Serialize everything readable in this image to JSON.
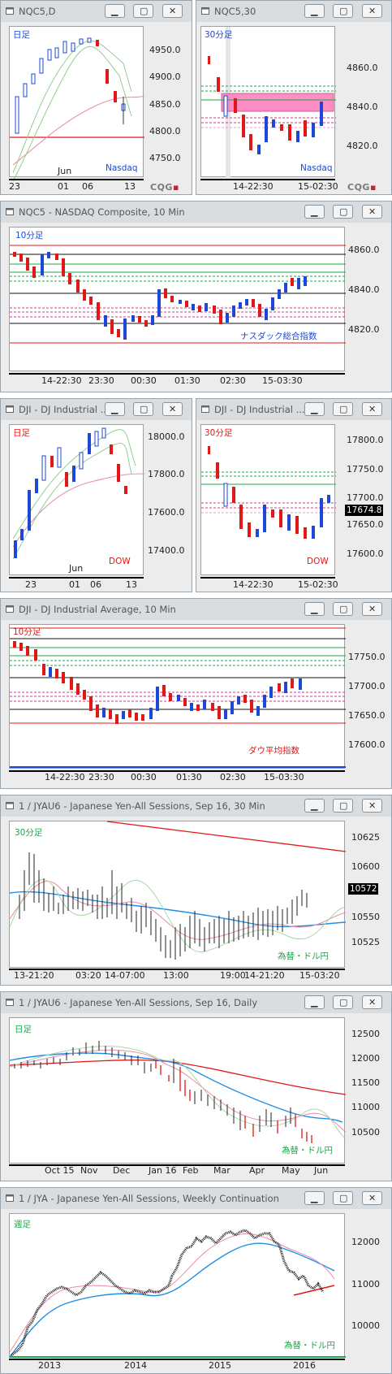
{
  "windows": [
    {
      "id": "nqc5-daily",
      "title": "NQC5,D",
      "label_tf": "日足",
      "label_name": "Nasdaq",
      "y_ticks": [
        "4950.0",
        "4900.0",
        "4850.0",
        "4800.0",
        "4750.0"
      ],
      "x_ticks": [
        "23",
        "01",
        "06",
        "13"
      ],
      "x_sub": "Jun"
    },
    {
      "id": "nqc5-30min",
      "title": "NQC5,30",
      "label_tf": "30分足",
      "label_name": "Nasdaq",
      "y_ticks": [
        "4860.0",
        "4840.0",
        "4820.0"
      ],
      "x_ticks": [
        "14-22:30",
        "15-02:30"
      ]
    },
    {
      "id": "nqc5-10min",
      "title": "NQC5 - NASDAQ Composite, 10 Min",
      "label_tf": "10分足",
      "label_name": "ナスダック総合指数",
      "y_ticks": [
        "4860.0",
        "4840.0",
        "4820.0"
      ],
      "x_ticks": [
        "14-22:30",
        "23:30",
        "00:30",
        "01:30",
        "02:30",
        "15-03:30"
      ]
    },
    {
      "id": "dji-daily",
      "title": "DJI - DJ Industrial ...",
      "label_tf": "日足",
      "label_name": "DOW",
      "y_ticks": [
        "18000.0",
        "17800.0",
        "17600.0",
        "17400.0"
      ],
      "x_ticks": [
        "23",
        "01",
        "06",
        "13"
      ],
      "x_sub": "Jun"
    },
    {
      "id": "dji-30min",
      "title": "DJI - DJ Industrial ...",
      "label_tf": "30分足",
      "label_name": "DOW",
      "y_ticks": [
        "17800.0",
        "17750.0",
        "17700.0",
        "17650.0",
        "17600.0"
      ],
      "price_box": "17674.8",
      "x_ticks": [
        "14-22:30",
        "15-02:30"
      ]
    },
    {
      "id": "dji-10min",
      "title": "DJI - DJ Industrial Average, 10 Min",
      "label_tf": "10分足",
      "label_name": "ダウ平均指数",
      "y_ticks": [
        "17750.0",
        "17700.0",
        "17650.0",
        "17600.0"
      ],
      "x_ticks": [
        "14-22:30",
        "23:30",
        "00:30",
        "01:30",
        "02:30",
        "15-03:30"
      ]
    },
    {
      "id": "jyau6-30min",
      "title": "1 / JYAU6 - Japanese Yen-All Sessions, Sep 16, 30 Min",
      "label_tf": "30分足",
      "label_name": "為替・ドル円",
      "y_ticks": [
        "10625",
        "10600",
        "10550",
        "10525"
      ],
      "price_box": "10572",
      "x_ticks": [
        "13-21:20",
        "03:20",
        "14-07:00",
        "13:00",
        "19:00",
        "14-21:20",
        "15-03:20"
      ]
    },
    {
      "id": "jyau6-daily",
      "title": "1 / JYAU6 - Japanese Yen-All Sessions, Sep 16, Daily",
      "label_tf": "日足",
      "label_name": "為替・ドル円",
      "y_ticks": [
        "12500",
        "12000",
        "11500",
        "11000",
        "10500"
      ],
      "x_ticks": [
        "Oct 15",
        "Nov",
        "Dec",
        "Jan 16",
        "Feb",
        "Mar",
        "Apr",
        "May",
        "Jun"
      ]
    },
    {
      "id": "jya-weekly",
      "title": "1 / JYA - Japanese Yen-All Sessions, Weekly Continuation",
      "label_tf": "週足",
      "label_name": "為替・ドル円",
      "y_ticks": [
        "12000",
        "11000",
        "10000"
      ],
      "x_ticks": [
        "2013",
        "2014",
        "2015",
        "2016"
      ]
    }
  ],
  "brand": {
    "cqg_left": "CQG",
    "cqg_right": "■"
  },
  "colors": {
    "up": "#1f47d6",
    "down": "#e0101a",
    "pink_band": "#ff78b8",
    "ma_red": "#e01818",
    "ma_blue": "#1e8fe6"
  }
}
